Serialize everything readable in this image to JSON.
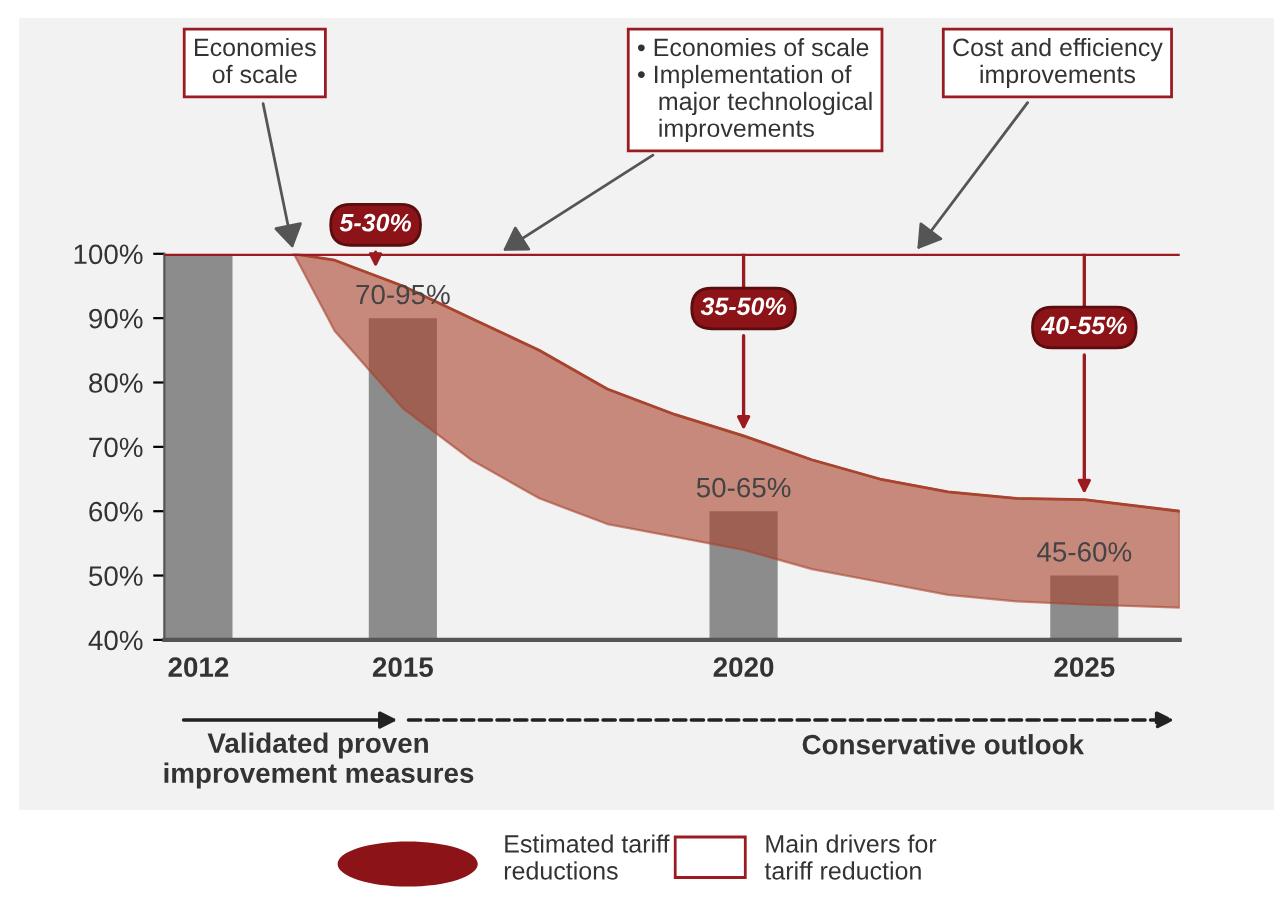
{
  "chart_data": {
    "type": "bar",
    "series": [
      {
        "x": [
          2012,
          2015,
          2020,
          2025
        ],
        "values": [
          100,
          90,
          60,
          50
        ],
        "color": "#8c8c8c"
      },
      {
        "type": "line",
        "color": "#a8432d",
        "x": [
          2013.4,
          2014,
          2015,
          2016,
          2017,
          2018,
          2019,
          2020,
          2021,
          2022,
          2023,
          2024,
          2025,
          2026.4
        ],
        "values": [
          100,
          99,
          95,
          90,
          85,
          79,
          75,
          71.7,
          68,
          65,
          63,
          62,
          61.8,
          60
        ],
        "upper": [
          100,
          99,
          95,
          90,
          85,
          79,
          75,
          71.7,
          68,
          65,
          63,
          62,
          61.8,
          60
        ],
        "lower": [
          100,
          88,
          76,
          68,
          62,
          58,
          56,
          54,
          51,
          49,
          47,
          46,
          45.5,
          45
        ]
      }
    ],
    "xlim": [
      2011.5,
      2026.4
    ],
    "xticks": [
      2012,
      2015,
      2020,
      2025
    ],
    "ylim": [
      40,
      100
    ],
    "yticks": [
      {
        "value": 40,
        "label": "40%"
      },
      {
        "value": 50,
        "label": "50%"
      },
      {
        "value": 60,
        "label": "60%"
      },
      {
        "value": 70,
        "label": "70%"
      },
      {
        "value": 80,
        "label": "80%"
      },
      {
        "value": 90,
        "label": "90%"
      },
      {
        "value": 100,
        "label": "100%"
      }
    ],
    "ref_lines": [
      {
        "axis": "y",
        "value": 100,
        "color": "#9b1c20"
      }
    ],
    "grid": false,
    "annotations": [
      {
        "text": "Economies\nof scale",
        "x": 2013.4,
        "y": 100
      },
      {
        "text": "• Economies of scale\n• Implementation of\n   major technological\n   improvements",
        "x": 2016.4,
        "y": 100
      },
      {
        "text": "Cost and efficiency\nimprovements",
        "x": 2022.5,
        "y": 100
      },
      {
        "text": "5-30%",
        "x": 2014.6,
        "y": 97
      },
      {
        "text": "35-50%",
        "x": 2020,
        "y": 71.7
      },
      {
        "text": "40-55%",
        "x": 2025,
        "y": 61.8
      },
      {
        "text": "70-95%",
        "x": 2015,
        "y": 90
      },
      {
        "text": "50-65%",
        "x": 2020,
        "y": 60
      },
      {
        "text": "45-60%",
        "x": 2025,
        "y": 50
      },
      "Validated proven\nimprovement measures",
      "Conservative outlook",
      "Estimated tariff\nreductions",
      "Main drivers for\ntariff reduction"
    ]
  }
}
